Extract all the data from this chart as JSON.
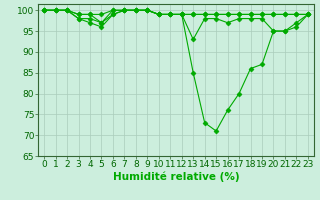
{
  "xlabel": "Humidité relative (%)",
  "background_color": "#cceedd",
  "grid_color": "#aaccbb",
  "line_color": "#00aa00",
  "marker": "D",
  "marker_size": 2.5,
  "xlim": [
    -0.5,
    23.5
  ],
  "ylim": [
    65,
    101.5
  ],
  "yticks": [
    65,
    70,
    75,
    80,
    85,
    90,
    95,
    100
  ],
  "xticks": [
    0,
    1,
    2,
    3,
    4,
    5,
    6,
    7,
    8,
    9,
    10,
    11,
    12,
    13,
    14,
    15,
    16,
    17,
    18,
    19,
    20,
    21,
    22,
    23
  ],
  "series": [
    [
      100,
      100,
      100,
      99,
      99,
      97,
      99,
      100,
      100,
      100,
      99,
      99,
      99,
      85,
      73,
      71,
      76,
      80,
      86,
      87,
      95,
      95,
      96,
      99
    ],
    [
      100,
      100,
      100,
      98,
      98,
      97,
      100,
      100,
      100,
      100,
      99,
      99,
      99,
      93,
      98,
      98,
      97,
      98,
      98,
      98,
      95,
      95,
      97,
      99
    ],
    [
      100,
      100,
      100,
      98,
      97,
      96,
      99,
      100,
      100,
      100,
      99,
      99,
      99,
      99,
      99,
      99,
      99,
      99,
      99,
      99,
      99,
      99,
      99,
      99
    ],
    [
      100,
      100,
      100,
      99,
      99,
      99,
      100,
      100,
      100,
      100,
      99,
      99,
      99,
      99,
      99,
      99,
      99,
      99,
      99,
      99,
      99,
      99,
      99,
      99
    ]
  ],
  "xlabel_fontsize": 7.5,
  "tick_fontsize": 6.5
}
